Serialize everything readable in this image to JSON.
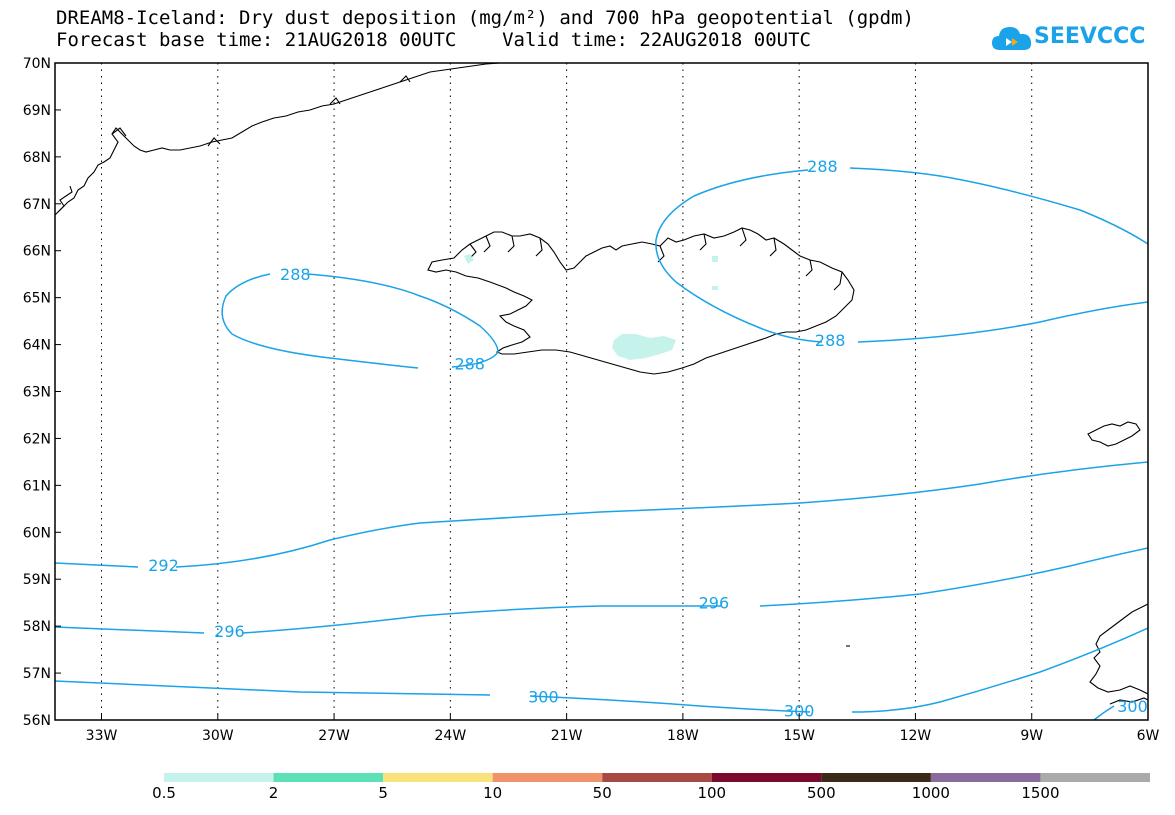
{
  "header": {
    "title_line1": "DREAM8-Iceland: Dry dust deposition (mg/m²) and 700 hPa geopotential (gpdm)",
    "title_line2": "Forecast base time: 21AUG2018 00UTC    Valid time: 22AUG2018 00UTC",
    "logo_text": "SEEVCCC",
    "logo_icon": "cloud-icon",
    "logo_color": "#1aa3e8"
  },
  "map": {
    "lon_range": [
      -34.2,
      -6.0
    ],
    "lat_range": [
      56.0,
      70.0
    ],
    "lon_ticks": [
      {
        "value": -33,
        "label": "33W"
      },
      {
        "value": -30,
        "label": "30W"
      },
      {
        "value": -27,
        "label": "27W"
      },
      {
        "value": -24,
        "label": "24W"
      },
      {
        "value": -21,
        "label": "21W"
      },
      {
        "value": -18,
        "label": "18W"
      },
      {
        "value": -15,
        "label": "15W"
      },
      {
        "value": -12,
        "label": "12W"
      },
      {
        "value": -9,
        "label": "9W"
      },
      {
        "value": -6,
        "label": "6W"
      }
    ],
    "lat_ticks": [
      {
        "value": 56,
        "label": "56N"
      },
      {
        "value": 57,
        "label": "57N"
      },
      {
        "value": 58,
        "label": "58N"
      },
      {
        "value": 59,
        "label": "59N"
      },
      {
        "value": 60,
        "label": "60N"
      },
      {
        "value": 61,
        "label": "61N"
      },
      {
        "value": 62,
        "label": "62N"
      },
      {
        "value": 63,
        "label": "63N"
      },
      {
        "value": 64,
        "label": "64N"
      },
      {
        "value": 65,
        "label": "65N"
      },
      {
        "value": 66,
        "label": "66N"
      },
      {
        "value": 67,
        "label": "67N"
      },
      {
        "value": 68,
        "label": "68N"
      },
      {
        "value": 69,
        "label": "69N"
      },
      {
        "value": 70,
        "label": "70N"
      }
    ],
    "contour_color": "#1aa3e8",
    "contour_labels": [
      {
        "text": "288",
        "lon": -28.0,
        "lat": 65.5
      },
      {
        "text": "288",
        "lon": -23.5,
        "lat": 63.6
      },
      {
        "text": "288",
        "lon": -14.4,
        "lat": 67.8
      },
      {
        "text": "288",
        "lon": -14.2,
        "lat": 64.1
      },
      {
        "text": "292",
        "lon": -31.4,
        "lat": 59.3
      },
      {
        "text": "296",
        "lon": -29.7,
        "lat": 57.9
      },
      {
        "text": "296",
        "lon": -17.2,
        "lat": 58.5
      },
      {
        "text": "300",
        "lon": -21.6,
        "lat": 56.5
      },
      {
        "text": "300",
        "lon": -15.0,
        "lat": 56.2
      },
      {
        "text": "300",
        "lon": -6.4,
        "lat": 56.3
      }
    ],
    "dust_color": "#c6f2ec"
  },
  "colorbar": {
    "colors": [
      "#c6f2ec",
      "#5de0b6",
      "#f8e27c",
      "#f0926a",
      "#a84a44",
      "#7a0a2e",
      "#3a2a1a",
      "#8a6a9a",
      "#aaaaaa"
    ],
    "labels": [
      "0.5",
      "2",
      "5",
      "10",
      "50",
      "100",
      "500",
      "1000",
      "1500"
    ]
  }
}
